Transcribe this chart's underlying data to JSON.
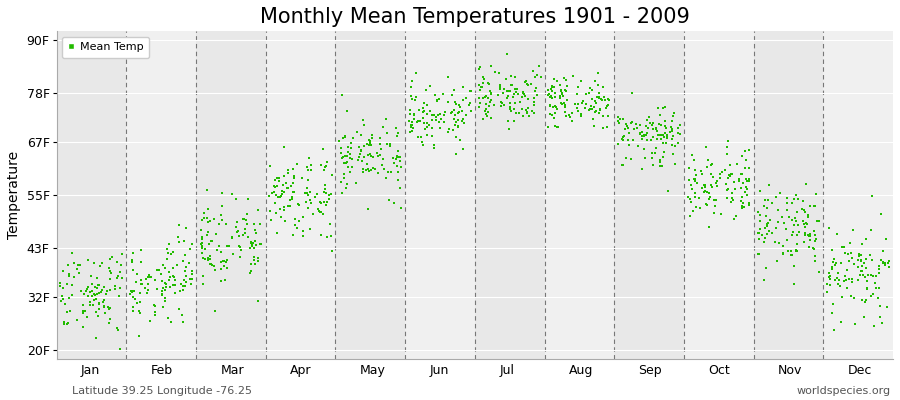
{
  "title": "Monthly Mean Temperatures 1901 - 2009",
  "ylabel": "Temperature",
  "yticks": [
    20,
    32,
    43,
    55,
    67,
    78,
    90
  ],
  "ytick_labels": [
    "20F",
    "32F",
    "43F",
    "55F",
    "67F",
    "78F",
    "90F"
  ],
  "ylim": [
    18,
    92
  ],
  "month_labels": [
    "Jan",
    "Feb",
    "Mar",
    "Apr",
    "May",
    "Jun",
    "Jul",
    "Aug",
    "Sep",
    "Oct",
    "Nov",
    "Dec"
  ],
  "dot_color": "#22bb00",
  "dot_size": 3,
  "band_colors": [
    "#e8e8e8",
    "#f0f0f0"
  ],
  "legend_label": "Mean Temp",
  "footer_left": "Latitude 39.25 Longitude -76.25",
  "footer_right": "worldspecies.org",
  "mean_temps": [
    33.0,
    35.0,
    44.0,
    54.0,
    64.0,
    73.0,
    77.5,
    76.0,
    68.5,
    57.0,
    47.0,
    37.0
  ],
  "std_temps": [
    5.0,
    5.0,
    5.0,
    4.5,
    4.0,
    3.5,
    3.0,
    3.0,
    3.5,
    4.0,
    4.5,
    5.5
  ],
  "n_years": 109,
  "title_fontsize": 15,
  "axis_label_fontsize": 9,
  "footer_fontsize": 8
}
